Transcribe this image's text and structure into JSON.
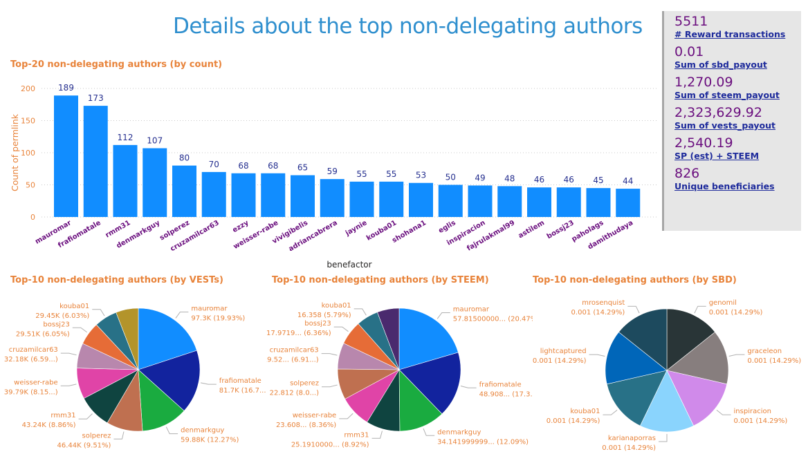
{
  "header": {
    "title": "Details about the top non-delegating authors"
  },
  "kpis": [
    {
      "value": "5511",
      "label": "# Reward transactions"
    },
    {
      "value": "0.01",
      "label": "Sum of sbd_payout"
    },
    {
      "value": "1,270.09",
      "label": "Sum of steem_payout"
    },
    {
      "value": "2,323,629.92",
      "label": "Sum of vests_payout"
    },
    {
      "value": "2,540.19",
      "label": "SP (est) + STEEM"
    },
    {
      "value": "826",
      "label": "Unique beneficiaries"
    }
  ],
  "colors": {
    "bar": "#118dff",
    "title_orange": "#e8833a",
    "data_label": "#252f8f",
    "category_label": "#6a0e7e",
    "page_title": "#2f8fce"
  },
  "chart_data": [
    {
      "type": "bar",
      "title": "Top-20 non-delegating authors (by count)",
      "xlabel": "benefactor",
      "ylabel": "Count of permlink",
      "ylim": [
        0,
        200
      ],
      "yticks": [
        0,
        50,
        100,
        150,
        200
      ],
      "grid": true,
      "categories": [
        "mauromar",
        "frafiomatale",
        "rmm31",
        "denmarkguy",
        "solperez",
        "cruzamilcar63",
        "ezzy",
        "weisser-rabe",
        "vivigibelis",
        "adriancabrera",
        "jaynie",
        "kouba01",
        "shohana1",
        "eglis",
        "inspiracion",
        "fajrulakmal99",
        "astilem",
        "bossj23",
        "paholags",
        "damithudaya"
      ],
      "values": [
        189,
        173,
        112,
        107,
        80,
        70,
        68,
        68,
        65,
        59,
        55,
        55,
        53,
        50,
        49,
        48,
        46,
        46,
        45,
        44
      ]
    },
    {
      "type": "pie",
      "title": "Top-10 non-delegating authors (by VESTs)",
      "slices": [
        {
          "name": "mauromar",
          "value": 97.3,
          "percent": 19.93,
          "label": "97.3K (19.93%)",
          "color": "#118dff"
        },
        {
          "name": "frafiomatale",
          "value": 81.7,
          "percent": 16.73,
          "label": "81.7K (16.7...)",
          "color": "#12239e"
        },
        {
          "name": "denmarkguy",
          "value": 59.88,
          "percent": 12.27,
          "label": "59.88K (12.27%)",
          "color": "#1aab40"
        },
        {
          "name": "solperez",
          "value": 46.44,
          "percent": 9.51,
          "label": "46.44K (9.51%)",
          "color": "#bf7050"
        },
        {
          "name": "rmm31",
          "value": 43.24,
          "percent": 8.86,
          "label": "43.24K (8.86%)",
          "color": "#0f4440"
        },
        {
          "name": "weisser-rabe",
          "value": 39.79,
          "percent": 8.15,
          "label": "39.79K (8.15...)",
          "color": "#e044a7"
        },
        {
          "name": "cruzamilcar63",
          "value": 32.18,
          "percent": 6.59,
          "label": "32.18K (6.59...)",
          "color": "#b887ad"
        },
        {
          "name": "bossj23",
          "value": 29.51,
          "percent": 6.05,
          "label": "29.51K (6.05%)",
          "color": "#e66c37"
        },
        {
          "name": "kouba01",
          "value": 29.45,
          "percent": 6.03,
          "label": "29.45K (6.03%)",
          "color": "#287187"
        },
        {
          "name": "",
          "value": 28.85,
          "percent": 5.91,
          "label": "",
          "color": "#b3942b"
        }
      ]
    },
    {
      "type": "pie",
      "title": "Top-10 non-delegating authors (by STEEM)",
      "slices": [
        {
          "name": "mauromar",
          "value": 57.815,
          "percent": 20.47,
          "label": "57.81500000... (20.47%)",
          "color": "#118dff"
        },
        {
          "name": "frafiomatale",
          "value": 48.908,
          "percent": 17.3,
          "label": "48.908... (17.3...)",
          "color": "#12239e"
        },
        {
          "name": "denmarkguy",
          "value": 34.142,
          "percent": 12.09,
          "label": "34.141999999... (12.09%)",
          "color": "#1aab40"
        },
        {
          "name": "rmm31",
          "value": 25.191,
          "percent": 8.92,
          "label": "25.1910000... (8.92%)",
          "color": "#0f4440"
        },
        {
          "name": "weisser-rabe",
          "value": 23.608,
          "percent": 8.36,
          "label": "23.608... (8.36%)",
          "color": "#e044a7"
        },
        {
          "name": "solperez",
          "value": 22.812,
          "percent": 8.08,
          "label": "22.812 (8.0...)",
          "color": "#bf7050"
        },
        {
          "name": "cruzamilcar63",
          "value": 19.52,
          "percent": 6.91,
          "label": "19.52... (6.91...)",
          "color": "#b887ad"
        },
        {
          "name": "bossj23",
          "value": 17.9719,
          "percent": 6.36,
          "label": "17.9719... (6.36%)",
          "color": "#e66c37"
        },
        {
          "name": "kouba01",
          "value": 16.358,
          "percent": 5.79,
          "label": "16.358 (5.79%)",
          "color": "#287187"
        },
        {
          "name": "",
          "value": 16.3,
          "percent": 5.77,
          "label": "",
          "color": "#4a2a6e"
        }
      ]
    },
    {
      "type": "pie",
      "title": "Top-10 non-delegating authors (by SBD)",
      "slices": [
        {
          "name": "genomil",
          "value": 0.001,
          "percent": 14.29,
          "label": "0.001 (14.29%)",
          "color": "#293537"
        },
        {
          "name": "graceleon",
          "value": 0.001,
          "percent": 14.29,
          "label": "0.001 (14.29%)",
          "color": "#877e7e"
        },
        {
          "name": "inspiracion",
          "value": 0.001,
          "percent": 14.29,
          "label": "0.001 (14.29%)",
          "color": "#d08aea"
        },
        {
          "name": "karianaporras",
          "value": 0.001,
          "percent": 14.29,
          "label": "0.001 (14.29%)",
          "color": "#8ad4fd"
        },
        {
          "name": "kouba01",
          "value": 0.001,
          "percent": 14.29,
          "label": "0.001 (14.29%)",
          "color": "#287187"
        },
        {
          "name": "lightcaptured",
          "value": 0.001,
          "percent": 14.29,
          "label": "0.001 (14.29%)",
          "color": "#0066b9"
        },
        {
          "name": "mrosenquist",
          "value": 0.001,
          "percent": 14.29,
          "label": "0.001 (14.29%)",
          "color": "#1d4a5e"
        }
      ]
    }
  ]
}
